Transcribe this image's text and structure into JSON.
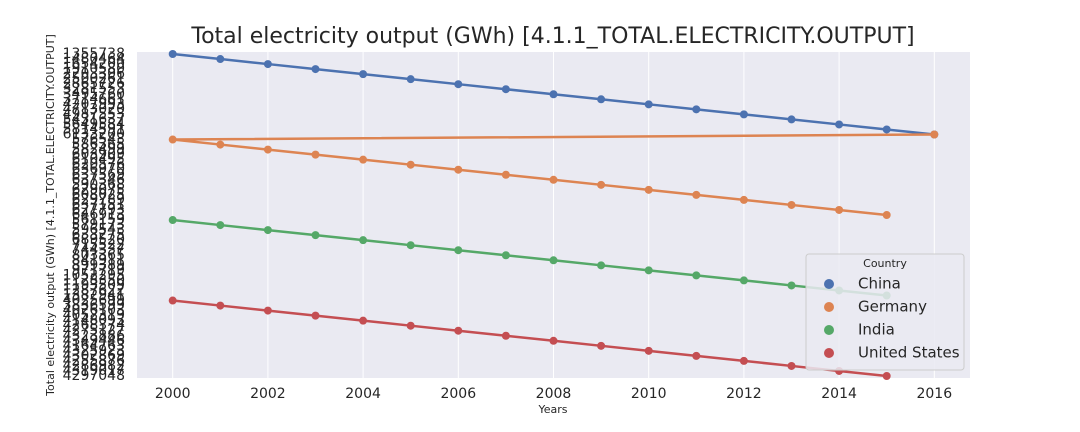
{
  "chart_data": {
    "type": "line",
    "title": "Total electricity output (GWh) [4.1.1_TOTAL.ELECTRICITY.OUTPUT]",
    "x_label": "Years",
    "y_label": "Total electricity output (GWh) [4.1.1_TOTAL.ELECTRICITY.OUTPUT]",
    "xlim": [
      1999.25,
      2016.75
    ],
    "xticks": [
      2000,
      2002,
      2004,
      2006,
      2008,
      2010,
      2012,
      2014,
      2016
    ],
    "grid": true,
    "legend_title": "Country",
    "legend_position": "lower right",
    "y_categories": [
      "1355738",
      "1480464",
      "1654200",
      "1910580",
      "2203306",
      "2500261",
      "2865726",
      "3281553",
      "3495760",
      "3714661",
      "4207993",
      "4713020",
      "4987553",
      "5431637",
      "5649584",
      "5814591",
      "6133200",
      "576543",
      "586365",
      "582499",
      "603909",
      "610495",
      "620576",
      "636970",
      "637569",
      "637346",
      "590368",
      "629075",
      "608025",
      "629789",
      "637151",
      "627793",
      "646913",
      "561159",
      "579173",
      "596543",
      "633275",
      "689520",
      "715522",
      "744337",
      "803365",
      "841911",
      "899389",
      "971719",
      "1052295",
      "1128350",
      "1193509",
      "1287622",
      "1382941",
      "4025699",
      "3836599",
      "4026103",
      "4052319",
      "4148093",
      "4268374",
      "4275127",
      "4323886",
      "4349446",
      "4164763",
      "4325923",
      "4302869",
      "4255876",
      "4286982",
      "4319017",
      "4297048"
    ],
    "series": [
      {
        "name": "China",
        "color": "#4c72b0",
        "x": [
          2000,
          2001,
          2002,
          2003,
          2004,
          2005,
          2006,
          2007,
          2008,
          2009,
          2010,
          2011,
          2012,
          2013,
          2014,
          2015,
          2016
        ],
        "values": [
          "1355738",
          "1480464",
          "1654200",
          "1910580",
          "2203306",
          "2500261",
          "2865726",
          "3281553",
          "3495760",
          "3714661",
          "4207993",
          "4713020",
          "4987553",
          "5431637",
          "5649584",
          "5814591",
          "6133200"
        ]
      },
      {
        "name": "Germany",
        "color": "#dd8452",
        "x": [
          2016,
          2000,
          2001,
          2002,
          2003,
          2004,
          2005,
          2006,
          2007,
          2008,
          2009,
          2010,
          2011,
          2012,
          2013,
          2014,
          2015
        ],
        "values": [
          "6133200",
          "576543",
          "586365",
          "582499",
          "603909",
          "610495",
          "620576",
          "636970",
          "637569",
          "637346",
          "590368",
          "629075",
          "608025",
          "629789",
          "637151",
          "627793",
          "646913"
        ]
      },
      {
        "name": "India",
        "color": "#55a868",
        "x": [
          2000,
          2001,
          2002,
          2003,
          2004,
          2005,
          2006,
          2007,
          2008,
          2009,
          2010,
          2011,
          2012,
          2013,
          2014,
          2015
        ],
        "values": [
          "561159",
          "579173",
          "596543",
          "633275",
          "689520",
          "715522",
          "744337",
          "803365",
          "841911",
          "899389",
          "971719",
          "1052295",
          "1128350",
          "1193509",
          "1287622",
          "1382941"
        ]
      },
      {
        "name": "United States",
        "color": "#c44e52",
        "x": [
          2000,
          2001,
          2002,
          2003,
          2004,
          2005,
          2006,
          2007,
          2008,
          2009,
          2010,
          2011,
          2012,
          2013,
          2014,
          2015
        ],
        "values": [
          "4025699",
          "3836599",
          "4026103",
          "4052319",
          "4148093",
          "4268374",
          "4275127",
          "4323886",
          "4349446",
          "4164763",
          "4325923",
          "4302869",
          "4255876",
          "4286982",
          "4319017",
          "4297048"
        ]
      }
    ]
  }
}
